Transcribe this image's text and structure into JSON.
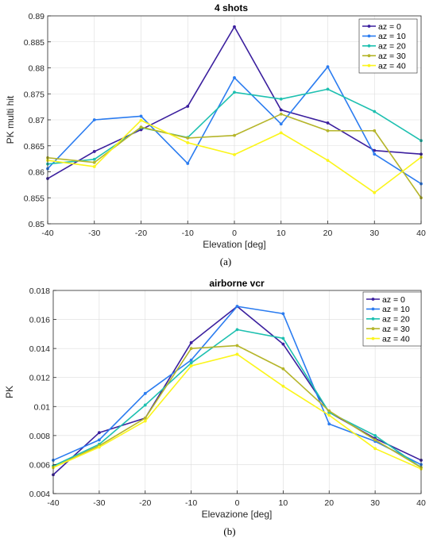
{
  "chart_data": [
    {
      "type": "line",
      "panel_label": "(a)",
      "title": "4 shots",
      "xlabel": "Elevation [deg]",
      "ylabel": "PK multi hit",
      "x": [
        -40,
        -30,
        -20,
        -10,
        0,
        10,
        20,
        30,
        40
      ],
      "xlim": [
        -40,
        40
      ],
      "ylim": [
        0.85,
        0.89
      ],
      "xticks": [
        -40,
        -30,
        -20,
        -10,
        0,
        10,
        20,
        30,
        40
      ],
      "yticks": [
        0.85,
        0.855,
        0.86,
        0.865,
        0.87,
        0.875,
        0.88,
        0.885,
        0.89
      ],
      "xtick_labels": [
        "-40",
        "-30",
        "-20",
        "-10",
        "0",
        "10",
        "20",
        "30",
        "40"
      ],
      "ytick_labels": [
        "0.85",
        "0.855",
        "0.86",
        "0.865",
        "0.87",
        "0.875",
        "0.88",
        "0.885",
        "0.89"
      ],
      "grid": true,
      "legend_position": "top-right",
      "series": [
        {
          "name": "az = 0",
          "color": "#3b1f9e",
          "values": [
            0.8587,
            0.8639,
            0.8681,
            0.8726,
            0.8879,
            0.8719,
            0.8694,
            0.8641,
            0.8634
          ]
        },
        {
          "name": "az = 10",
          "color": "#2b7cf0",
          "values": [
            0.8606,
            0.87,
            0.8707,
            0.8616,
            0.8781,
            0.8692,
            0.8802,
            0.8634,
            0.8577
          ]
        },
        {
          "name": "az = 20",
          "color": "#1ec0b0",
          "values": [
            0.8615,
            0.8624,
            0.8685,
            0.8666,
            0.8753,
            0.874,
            0.8759,
            0.8716,
            0.866
          ]
        },
        {
          "name": "az = 30",
          "color": "#b5b52a",
          "values": [
            0.8627,
            0.8618,
            0.8686,
            0.8665,
            0.867,
            0.8711,
            0.8679,
            0.8679,
            0.855
          ]
        },
        {
          "name": "az = 40",
          "color": "#fbf51c",
          "values": [
            0.8622,
            0.861,
            0.8699,
            0.8656,
            0.8633,
            0.8675,
            0.8622,
            0.856,
            0.8628
          ]
        }
      ]
    },
    {
      "type": "line",
      "panel_label": "(b)",
      "title": "airborne vcr",
      "xlabel": "Elevazione [deg]",
      "ylabel": "PK",
      "x": [
        -40,
        -30,
        -20,
        -10,
        0,
        10,
        20,
        30,
        40
      ],
      "xlim": [
        -40,
        40
      ],
      "ylim": [
        0.004,
        0.018
      ],
      "xticks": [
        -40,
        -30,
        -20,
        -10,
        0,
        10,
        20,
        30,
        40
      ],
      "yticks": [
        0.004,
        0.006,
        0.008,
        0.01,
        0.012,
        0.014,
        0.016,
        0.018
      ],
      "xtick_labels": [
        "-40",
        "-30",
        "-20",
        "-10",
        "0",
        "10",
        "20",
        "30",
        "40"
      ],
      "ytick_labels": [
        "0.004",
        "0.006",
        "0.008",
        "0.01",
        "0.012",
        "0.014",
        "0.016",
        "0.018"
      ],
      "grid": true,
      "legend_position": "top-right",
      "series": [
        {
          "name": "az = 0",
          "color": "#3b1f9e",
          "values": [
            0.0053,
            0.0082,
            0.0092,
            0.0144,
            0.0169,
            0.0143,
            0.0096,
            0.0078,
            0.0063
          ]
        },
        {
          "name": "az = 10",
          "color": "#2b7cf0",
          "values": [
            0.0063,
            0.0077,
            0.0109,
            0.0132,
            0.0169,
            0.0164,
            0.0088,
            0.0076,
            0.006
          ]
        },
        {
          "name": "az = 20",
          "color": "#1ec0b0",
          "values": [
            0.0059,
            0.0074,
            0.0101,
            0.013,
            0.0153,
            0.0147,
            0.0096,
            0.008,
            0.0058
          ]
        },
        {
          "name": "az = 30",
          "color": "#b5b52a",
          "values": [
            0.0058,
            0.0073,
            0.0092,
            0.014,
            0.0142,
            0.0126,
            0.0097,
            0.0077,
            0.0058
          ]
        },
        {
          "name": "az = 40",
          "color": "#fbf51c",
          "values": [
            0.0058,
            0.0072,
            0.009,
            0.0128,
            0.0136,
            0.0114,
            0.0094,
            0.0071,
            0.0057
          ]
        }
      ]
    }
  ]
}
